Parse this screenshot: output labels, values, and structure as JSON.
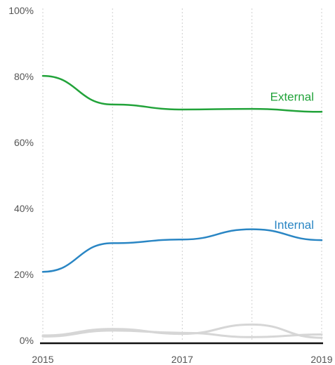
{
  "chart_data": {
    "type": "line",
    "x": [
      2015,
      2016,
      2017,
      2018,
      2019
    ],
    "xlim": [
      2015,
      2019
    ],
    "ylim": [
      0,
      100
    ],
    "x_tick_labels": [
      {
        "value": 2015,
        "label": "2015"
      },
      {
        "value": 2017,
        "label": "2017"
      },
      {
        "value": 2019,
        "label": "2019"
      }
    ],
    "x_gridlines": [
      2015,
      2016,
      2017,
      2018,
      2019
    ],
    "y_ticks": [
      {
        "value": 0,
        "label": "0%"
      },
      {
        "value": 20,
        "label": "20%"
      },
      {
        "value": 40,
        "label": "40%"
      },
      {
        "value": 60,
        "label": "60%"
      },
      {
        "value": 80,
        "label": "80%"
      },
      {
        "value": 100,
        "label": "100%"
      }
    ],
    "grid": "vertical dotted",
    "series": [
      {
        "name": "External",
        "color": "#22a33a",
        "values": [
          80.2,
          71.5,
          70.0,
          70.2,
          69.3
        ],
        "labeled": true
      },
      {
        "name": "Internal",
        "color": "#2a86c4",
        "values": [
          20.8,
          29.5,
          30.6,
          33.7,
          30.4
        ],
        "labeled": true
      },
      {
        "name": "",
        "color": "#d6d6d6",
        "values": [
          1.5,
          3.5,
          2.0,
          4.8,
          0.8
        ],
        "labeled": false
      },
      {
        "name": "",
        "color": "#d6d6d6",
        "values": [
          1.2,
          3.0,
          2.3,
          1.0,
          1.8
        ],
        "labeled": false
      }
    ]
  }
}
